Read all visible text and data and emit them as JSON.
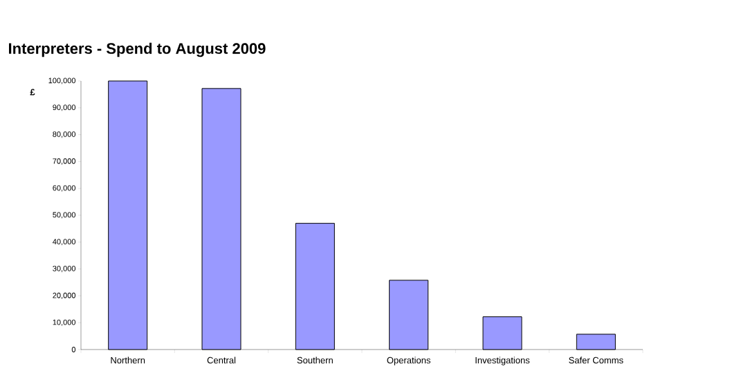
{
  "chart_data": {
    "type": "bar",
    "title": "Interpreters - Spend to August 2009",
    "ylabel": "£",
    "categories": [
      "Northern",
      "Central",
      "Southern",
      "Operations",
      "Investigations",
      "Safer Comms"
    ],
    "values": [
      100000,
      97200,
      47000,
      25800,
      12200,
      5700
    ],
    "color": "#9999ff",
    "ylim": [
      0,
      100000
    ],
    "yticks": [
      {
        "value": 0,
        "label": "0"
      },
      {
        "value": 10000,
        "label": "10,000"
      },
      {
        "value": 20000,
        "label": "20,000"
      },
      {
        "value": 30000,
        "label": "30,000"
      },
      {
        "value": 40000,
        "label": "40,000"
      },
      {
        "value": 50000,
        "label": "50,000"
      },
      {
        "value": 60000,
        "label": "60,000"
      },
      {
        "value": 70000,
        "label": "70,000"
      },
      {
        "value": 80000,
        "label": "80,000"
      },
      {
        "value": 90000,
        "label": "90,000"
      },
      {
        "value": 100000,
        "label": "100,000"
      }
    ],
    "grid": false
  }
}
